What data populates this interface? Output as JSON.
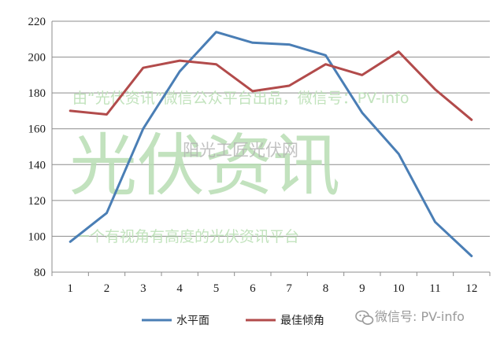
{
  "chart_data": {
    "type": "line",
    "x": [
      "1",
      "2",
      "3",
      "4",
      "5",
      "6",
      "7",
      "8",
      "9",
      "10",
      "11",
      "12"
    ],
    "ylim": [
      80,
      220
    ],
    "yticks": [
      "80",
      "100",
      "120",
      "140",
      "160",
      "180",
      "200",
      "220"
    ],
    "grid": true,
    "legend_position": "bottom",
    "series": [
      {
        "name": "水平面",
        "color": "#4a7eb5",
        "values": [
          97,
          113,
          160,
          192,
          214,
          208,
          207,
          201,
          169,
          146,
          108,
          89
        ]
      },
      {
        "name": "最佳倾角",
        "color": "#b24b4b",
        "values": [
          170,
          168,
          194,
          198,
          196,
          181,
          184,
          196,
          190,
          203,
          182,
          165
        ]
      }
    ]
  },
  "watermark": {
    "big": "光伏资讯",
    "line_top": "由“光伏资讯”微信公众平台出品，微信号：PV-info",
    "line_bottom": "一个有视角有高度的光伏资讯平台",
    "gray": "阳光工匠光伏网",
    "corner": "微信号: PV-info"
  }
}
